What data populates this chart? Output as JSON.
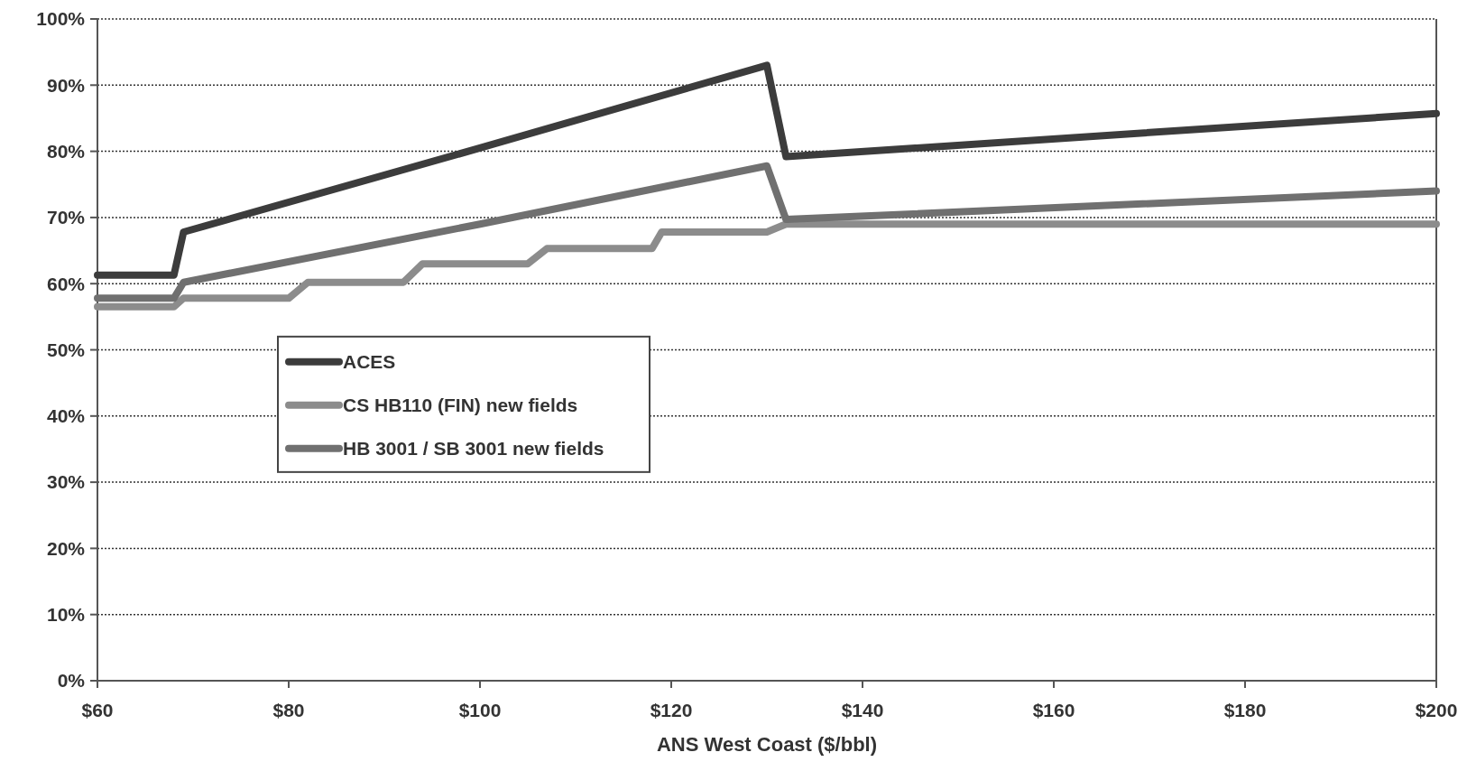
{
  "chart_data": {
    "type": "line",
    "xlabel": "ANS West Coast ($/bbl)",
    "xlim": [
      60,
      200
    ],
    "xticks": [
      {
        "value": 60,
        "label": "$60"
      },
      {
        "value": 80,
        "label": "$80"
      },
      {
        "value": 100,
        "label": "$100"
      },
      {
        "value": 120,
        "label": "$120"
      },
      {
        "value": 140,
        "label": "$140"
      },
      {
        "value": 160,
        "label": "$160"
      },
      {
        "value": 180,
        "label": "$180"
      },
      {
        "value": 200,
        "label": "$200"
      }
    ],
    "ylim": [
      0,
      100
    ],
    "yticks": [
      {
        "value": 0,
        "label": "0%"
      },
      {
        "value": 10,
        "label": "10%"
      },
      {
        "value": 20,
        "label": "20%"
      },
      {
        "value": 30,
        "label": "30%"
      },
      {
        "value": 40,
        "label": "40%"
      },
      {
        "value": 50,
        "label": "50%"
      },
      {
        "value": 60,
        "label": "60%"
      },
      {
        "value": 70,
        "label": "70%"
      },
      {
        "value": 80,
        "label": "80%"
      },
      {
        "value": 90,
        "label": "90%"
      },
      {
        "value": 100,
        "label": "100%"
      }
    ],
    "grid": "y",
    "legend": "left",
    "marker": "none",
    "line_style": "solid",
    "series": [
      {
        "name": "ACES",
        "color": "#3c3c3c",
        "x": [
          60,
          68,
          69,
          100,
          130,
          132,
          200
        ],
        "values": [
          61.3,
          61.3,
          67.8,
          80.5,
          93,
          79.2,
          85.7
        ]
      },
      {
        "name": "CS HB110  (FIN) new fields",
        "color": "#8c8c8c",
        "x": [
          60,
          68,
          69,
          80,
          82,
          92,
          94,
          105,
          107,
          118,
          119,
          130,
          132,
          200
        ],
        "values": [
          56.5,
          56.5,
          57.8,
          57.8,
          60.2,
          60.2,
          63,
          63,
          65.3,
          65.3,
          67.8,
          67.8,
          69,
          69
        ]
      },
      {
        "name": "HB 3001 / SB 3001 new fields",
        "color": "#707070",
        "x": [
          60,
          68,
          69,
          100,
          130,
          132,
          200
        ],
        "values": [
          57.8,
          57.8,
          60.2,
          69,
          77.8,
          69.7,
          74
        ]
      }
    ]
  }
}
